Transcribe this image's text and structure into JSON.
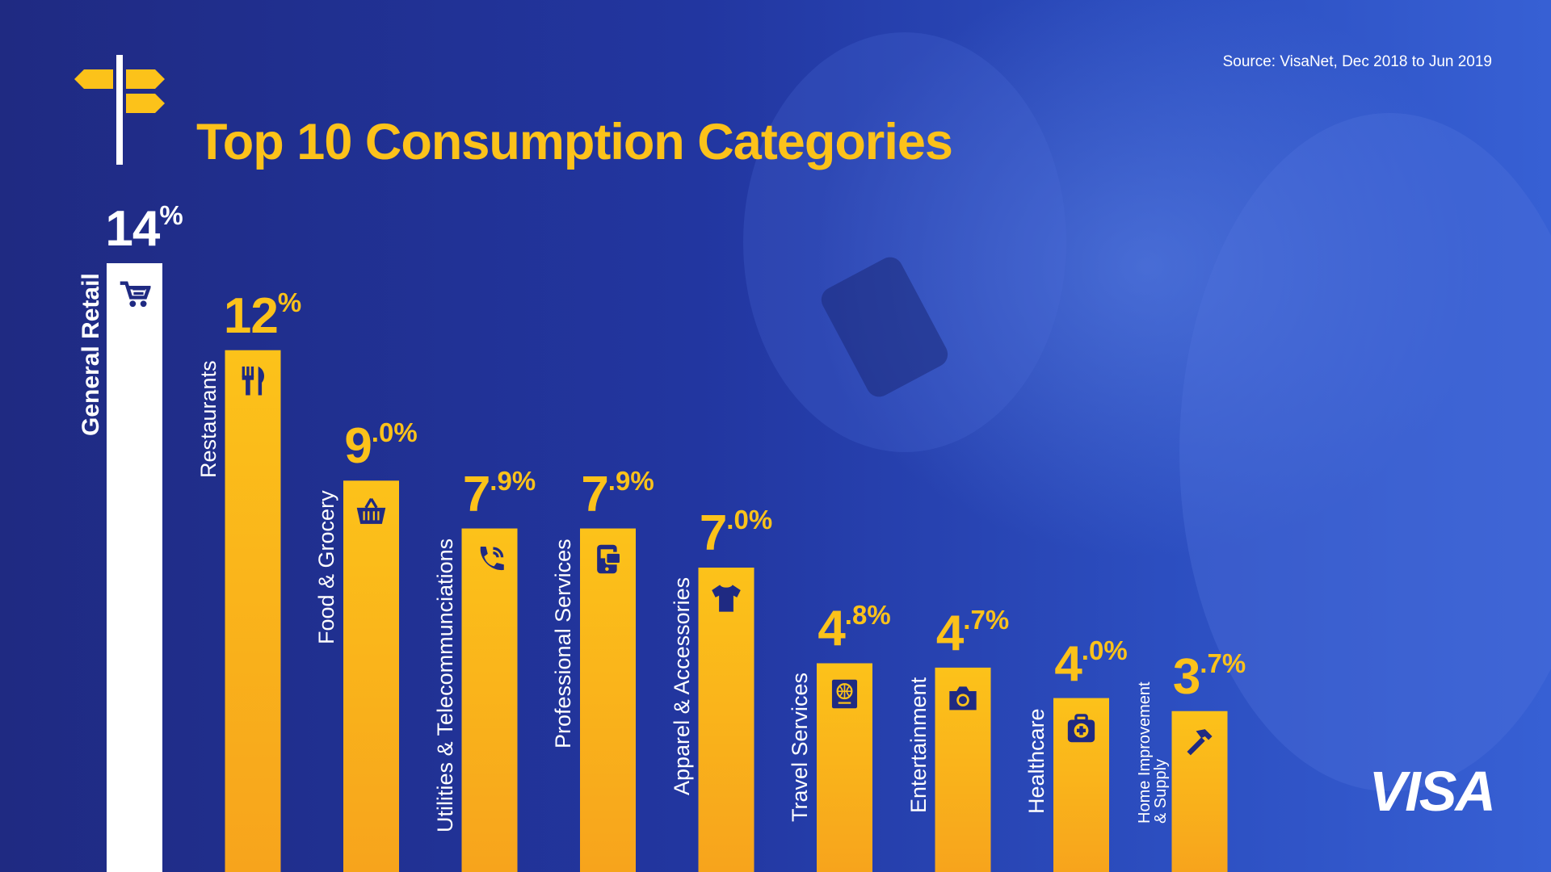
{
  "source": "Source: VisaNet, Dec 2018 to Jun 2019",
  "title": "Top 10 Consumption Categories",
  "logo": "VISA",
  "colors": {
    "bar": "#fcc21a",
    "bar_bottom": "#f7a41c",
    "highlight_bar": "#ffffff",
    "title": "#fcc21a",
    "icon": "#1f2a82"
  },
  "chart_data": {
    "type": "bar",
    "categories": [
      "General Retail",
      "Restaurants",
      "Food & Grocery",
      "Utilities & Telecommunciations",
      "Professional Services",
      "Apparel & Accessories",
      "Travel Services",
      "Entertainment",
      "Healthcare",
      "Home Improvement & Supply"
    ],
    "values": [
      14,
      12,
      9.0,
      7.9,
      7.9,
      7.0,
      4.8,
      4.7,
      4.0,
      3.7
    ],
    "value_big": [
      "14",
      "12",
      "9",
      "7",
      "7",
      "7",
      "4",
      "4",
      "4",
      "3"
    ],
    "value_small": [
      "%",
      "%",
      ".0%",
      ".9%",
      ".9%",
      ".0%",
      ".8%",
      ".7%",
      ".0%",
      ".7%"
    ],
    "icons": [
      "shopping-cart-icon",
      "fork-knife-icon",
      "basket-icon",
      "phone-icon",
      "device-icon",
      "tshirt-icon",
      "passport-icon",
      "camera-icon",
      "medical-kit-icon",
      "hammer-icon"
    ],
    "highlight_index": 0,
    "unit": "%",
    "grid": false,
    "legend": "none"
  }
}
